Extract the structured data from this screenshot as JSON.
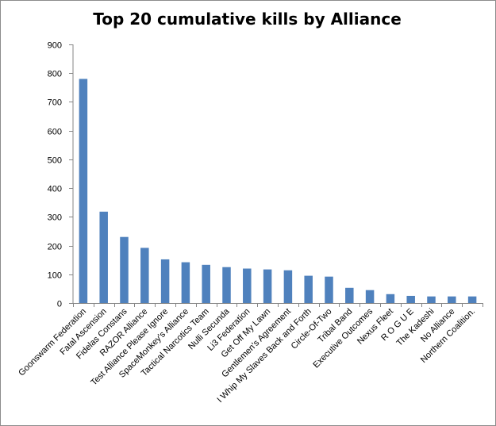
{
  "chart_data": {
    "type": "bar",
    "title": "Top 20 cumulative kills by Alliance",
    "xlabel": "",
    "ylabel": "",
    "ylim": [
      0,
      900
    ],
    "yticks": [
      0,
      100,
      200,
      300,
      400,
      500,
      600,
      700,
      800,
      900
    ],
    "grid": false,
    "legend": "none",
    "bar_color": "#4F81BD",
    "categories": [
      "Goonswarm Federation",
      "Fatal Ascension",
      "Fidelas Constans",
      "RAZOR Alliance",
      "Test Alliance Please Ignore",
      "SpaceMonkey's Alliance",
      "Tactical Narcotics Team",
      "Nulli Secunda",
      "Li3 Federation",
      "Get Off My Lawn",
      "Gentlemen's Agreement",
      "I Whip My Slaves Back and Forth",
      "Circle-Of-Two",
      "Tribal Band",
      "Executive Outcomes",
      "Nexus Fleet",
      "R O G U E",
      "The Kadeshi",
      "No Alliance",
      "Northern Coalition."
    ],
    "values": [
      780,
      318,
      230,
      192,
      152,
      142,
      133,
      125,
      120,
      117,
      114,
      95,
      92,
      53,
      45,
      31,
      25,
      23,
      23,
      23
    ]
  }
}
